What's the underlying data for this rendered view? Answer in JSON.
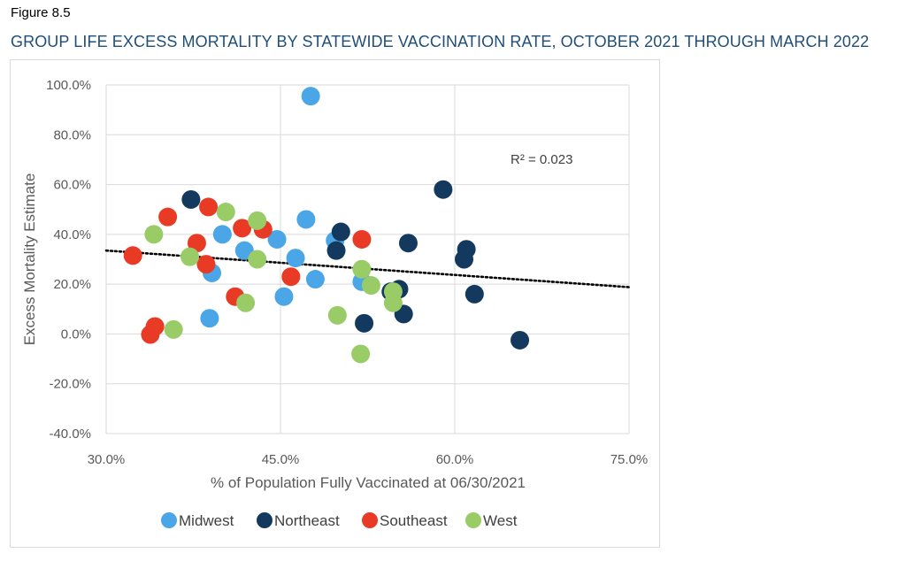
{
  "figure_label": "Figure 8.5",
  "figure_title": "GROUP LIFE EXCESS MORTALITY BY STATEWIDE VACCINATION RATE, OCTOBER 2021 THROUGH MARCH 2022",
  "chart_data": {
    "type": "scatter",
    "title": "GROUP LIFE EXCESS MORTALITY BY STATEWIDE VACCINATION RATE, OCTOBER 2021 THROUGH MARCH 2022",
    "xlabel": "% of Population Fully Vaccinated at 06/30/2021",
    "ylabel": "Excess Mortality Estimate",
    "xlim": [
      30,
      75
    ],
    "ylim": [
      -40,
      100
    ],
    "x_ticks": [
      30,
      45,
      60,
      75
    ],
    "x_tick_labels": [
      "30.0%",
      "45.0%",
      "60.0%",
      "75.0%"
    ],
    "y_ticks": [
      100,
      80,
      60,
      40,
      20,
      0,
      -20,
      -40
    ],
    "y_tick_labels": [
      "100.0%",
      "80.0%",
      "60.0%",
      "40.0%",
      "20.0%",
      "0.0%",
      "-20.0%",
      "-40.0%"
    ],
    "grid": true,
    "legend_position": "bottom",
    "annotation": "R² = 0.023",
    "trendline": {
      "x": [
        30,
        75
      ],
      "y": [
        33.5,
        18.8
      ],
      "style": "dotted"
    },
    "series": [
      {
        "name": "Midwest",
        "color": "#4aa6e6",
        "points": [
          [
            47.6,
            95.5
          ],
          [
            40.0,
            40.0
          ],
          [
            41.9,
            33.5
          ],
          [
            39.1,
            24.5
          ],
          [
            38.9,
            6.3
          ],
          [
            44.7,
            38.0
          ],
          [
            47.2,
            46.0
          ],
          [
            46.3,
            30.5
          ],
          [
            48.0,
            22.0
          ],
          [
            45.3,
            15.0
          ],
          [
            49.7,
            37.5
          ],
          [
            52.0,
            21.0
          ]
        ]
      },
      {
        "name": "Northeast",
        "color": "#133a5e",
        "points": [
          [
            37.3,
            54.0
          ],
          [
            50.2,
            41.0
          ],
          [
            49.8,
            33.5
          ],
          [
            56.0,
            36.5
          ],
          [
            59.0,
            58.0
          ],
          [
            61.0,
            34.0
          ],
          [
            60.8,
            30.0
          ],
          [
            55.2,
            18.0
          ],
          [
            55.6,
            8.0
          ],
          [
            61.7,
            16.0
          ],
          [
            52.2,
            4.3
          ],
          [
            65.6,
            -2.5
          ],
          [
            54.5,
            17.0
          ]
        ]
      },
      {
        "name": "Southeast",
        "color": "#e83a25",
        "points": [
          [
            32.3,
            31.5
          ],
          [
            35.3,
            47.0
          ],
          [
            38.8,
            51.0
          ],
          [
            37.8,
            36.5
          ],
          [
            41.7,
            42.5
          ],
          [
            43.5,
            42.0
          ],
          [
            38.6,
            28.0
          ],
          [
            41.1,
            15.0
          ],
          [
            45.9,
            23.0
          ],
          [
            52.0,
            38.0
          ],
          [
            34.2,
            3.0
          ],
          [
            33.8,
            -0.2
          ]
        ]
      },
      {
        "name": "West",
        "color": "#99cc66",
        "points": [
          [
            34.1,
            40.0
          ],
          [
            37.2,
            31.0
          ],
          [
            40.3,
            49.0
          ],
          [
            43.0,
            45.5
          ],
          [
            43.0,
            30.0
          ],
          [
            42.0,
            12.5
          ],
          [
            35.8,
            1.8
          ],
          [
            49.9,
            7.5
          ],
          [
            52.0,
            26.0
          ],
          [
            52.8,
            19.5
          ],
          [
            54.7,
            17.0
          ],
          [
            54.7,
            12.5
          ],
          [
            51.9,
            -8.0
          ]
        ]
      }
    ]
  }
}
